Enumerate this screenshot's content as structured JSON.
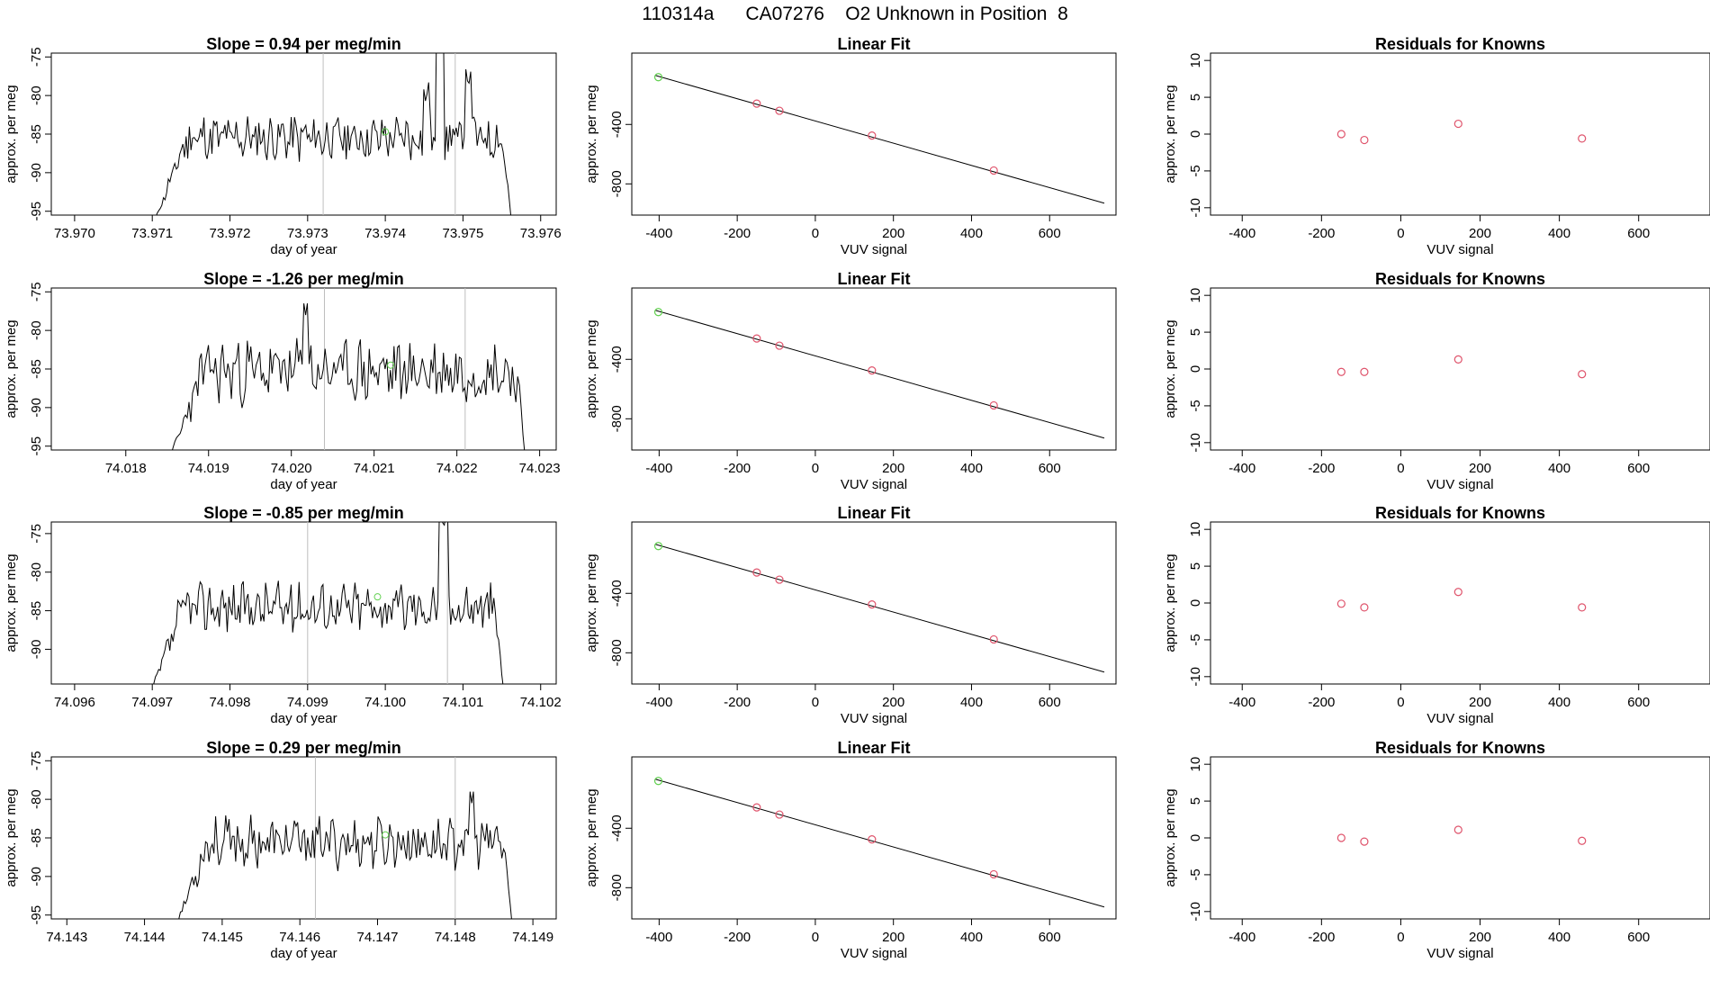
{
  "figure_title": "110314a      CA07276    O2 Unknown in Position  8",
  "labels": {
    "day_of_year": "day of year",
    "approx_per_meg": "approx. per meg",
    "vuv_signal": "VUV signal",
    "linear_fit": "Linear Fit",
    "residuals": "Residuals for Knowns"
  },
  "colors": {
    "trace": "#000000",
    "vline": "#bebebe",
    "known": "#df536b",
    "unknown": "#61d04f",
    "axis": "#000000"
  },
  "chart_data": [
    {
      "row": 0,
      "panel": "time-series",
      "type": "line",
      "title": "Slope =  0.94  per meg/min",
      "xlabel": "day of year",
      "ylabel": "approx. per meg",
      "xlim": [
        73.9697,
        73.9762
      ],
      "ylim": [
        -95.5,
        -74.5
      ],
      "xticks": [
        "73.970",
        "73.971",
        "73.972",
        "73.973",
        "73.974",
        "73.975",
        "73.976"
      ],
      "yticks": [
        "-75",
        "-80",
        "-85",
        "-90",
        "-95"
      ],
      "vlines": [
        73.9732,
        73.9749
      ],
      "unknown_point": [
        73.974,
        -84.7
      ],
      "trace": {
        "start": 73.97104,
        "end": 73.97562,
        "n": 220,
        "mean": -85.5,
        "amp": 1.6,
        "seed": 11,
        "ramp_from": -96,
        "spikes": [
          [
            0.8,
            -72,
            3
          ],
          [
            0.76,
            -81,
            2
          ],
          [
            0.88,
            -79,
            2
          ]
        ],
        "drop_to": -96
      }
    },
    {
      "row": 0,
      "panel": "linear-fit",
      "type": "scatter",
      "title": "Linear Fit",
      "xlabel": "VUV signal",
      "ylabel": "approx. per meg",
      "xlim": [
        -470,
        770
      ],
      "ylim": [
        -1010,
        80
      ],
      "xticks": [
        "-400",
        "-200",
        "0",
        "200",
        "400",
        "600"
      ],
      "yticks": [
        "-400",
        "-800"
      ],
      "fit_line": [
        [
          -410,
          -70
        ],
        [
          740,
          -930
        ]
      ],
      "known_points": [
        [
          -150,
          -260
        ],
        [
          -92,
          -308
        ],
        [
          145,
          -475
        ],
        [
          457,
          -710
        ]
      ],
      "unknown_points": [
        [
          -402,
          -82
        ]
      ]
    },
    {
      "row": 0,
      "panel": "residuals",
      "type": "scatter",
      "title": "Residuals for Knowns",
      "xlabel": "VUV signal",
      "ylabel": "approx. per meg",
      "xlim": [
        -480,
        780
      ],
      "ylim": [
        -11,
        11
      ],
      "xticks": [
        "-400",
        "-200",
        "0",
        "200",
        "400",
        "600"
      ],
      "yticks": [
        "10",
        "5",
        "0",
        "-5",
        "-10"
      ],
      "known_points": [
        [
          -150,
          0.0
        ],
        [
          -92,
          -0.8
        ],
        [
          145,
          1.4
        ],
        [
          457,
          -0.6
        ]
      ]
    },
    {
      "row": 1,
      "panel": "time-series",
      "type": "line",
      "title": "Slope =  -1.26  per meg/min",
      "xlabel": "day of year",
      "ylabel": "approx. per meg",
      "xlim": [
        74.0171,
        74.0232
      ],
      "ylim": [
        -95.5,
        -74.5
      ],
      "xticks": [
        "74.018",
        "74.019",
        "74.020",
        "74.021",
        "74.022",
        "74.023"
      ],
      "yticks": [
        "-75",
        "-80",
        "-85",
        "-90",
        "-95"
      ],
      "vlines": [
        74.0204,
        74.0221
      ],
      "unknown_point": [
        74.0212,
        -84.5
      ],
      "trace": {
        "start": 74.01855,
        "end": 74.02282,
        "n": 200,
        "mean": -85.3,
        "amp": 2.2,
        "seed": 23,
        "ramp_from": -96,
        "spikes": [
          [
            0.38,
            -78,
            2
          ]
        ],
        "drop_to": -96
      }
    },
    {
      "row": 1,
      "panel": "linear-fit",
      "type": "scatter",
      "title": "Linear Fit",
      "xlabel": "VUV signal",
      "ylabel": "approx. per meg",
      "xlim": [
        -470,
        770
      ],
      "ylim": [
        -1010,
        80
      ],
      "xticks": [
        "-400",
        "-200",
        "0",
        "200",
        "400",
        "600"
      ],
      "yticks": [
        "-400",
        "-800"
      ],
      "fit_line": [
        [
          -410,
          -70
        ],
        [
          740,
          -930
        ]
      ],
      "known_points": [
        [
          -150,
          -260
        ],
        [
          -92,
          -308
        ],
        [
          145,
          -475
        ],
        [
          457,
          -710
        ]
      ],
      "unknown_points": [
        [
          -402,
          -82
        ]
      ]
    },
    {
      "row": 1,
      "panel": "residuals",
      "type": "scatter",
      "title": "Residuals for Knowns",
      "xlabel": "VUV signal",
      "ylabel": "approx. per meg",
      "xlim": [
        -480,
        780
      ],
      "ylim": [
        -11,
        11
      ],
      "xticks": [
        "-400",
        "-200",
        "0",
        "200",
        "400",
        "600"
      ],
      "yticks": [
        "10",
        "5",
        "0",
        "-5",
        "-10"
      ],
      "known_points": [
        [
          -150,
          -0.4
        ],
        [
          -92,
          -0.4
        ],
        [
          145,
          1.3
        ],
        [
          457,
          -0.7
        ]
      ]
    },
    {
      "row": 2,
      "panel": "time-series",
      "type": "line",
      "title": "Slope =  -0.85  per meg/min",
      "xlabel": "day of year",
      "ylabel": "approx. per meg",
      "xlim": [
        74.0957,
        74.1022
      ],
      "ylim": [
        -94.5,
        -73.5
      ],
      "xticks": [
        "74.096",
        "74.097",
        "74.098",
        "74.099",
        "74.100",
        "74.101",
        "74.102"
      ],
      "yticks": [
        "-75",
        "-80",
        "-85",
        "-90"
      ],
      "vlines": [
        74.099,
        74.1008
      ],
      "unknown_point": [
        74.0999,
        -83.2
      ],
      "trace": {
        "start": 74.097,
        "end": 74.10152,
        "n": 220,
        "mean": -84.5,
        "amp": 1.7,
        "seed": 37,
        "ramp_from": -95,
        "spikes": [
          [
            0.83,
            -74.5,
            3
          ]
        ],
        "drop_to": -95
      }
    },
    {
      "row": 2,
      "panel": "linear-fit",
      "type": "scatter",
      "title": "Linear Fit",
      "xlabel": "VUV signal",
      "ylabel": "approx. per meg",
      "xlim": [
        -470,
        770
      ],
      "ylim": [
        -1010,
        80
      ],
      "xticks": [
        "-400",
        "-200",
        "0",
        "200",
        "400",
        "600"
      ],
      "yticks": [
        "-400",
        "-800"
      ],
      "fit_line": [
        [
          -410,
          -70
        ],
        [
          740,
          -930
        ]
      ],
      "known_points": [
        [
          -150,
          -260
        ],
        [
          -92,
          -308
        ],
        [
          145,
          -475
        ],
        [
          457,
          -710
        ]
      ],
      "unknown_points": [
        [
          -402,
          -82
        ]
      ]
    },
    {
      "row": 2,
      "panel": "residuals",
      "type": "scatter",
      "title": "Residuals for Knowns",
      "xlabel": "VUV signal",
      "ylabel": "approx. per meg",
      "xlim": [
        -480,
        780
      ],
      "ylim": [
        -11,
        11
      ],
      "xticks": [
        "-400",
        "-200",
        "0",
        "200",
        "400",
        "600"
      ],
      "yticks": [
        "10",
        "5",
        "0",
        "-5",
        "-10"
      ],
      "known_points": [
        [
          -150,
          -0.1
        ],
        [
          -92,
          -0.6
        ],
        [
          145,
          1.5
        ],
        [
          457,
          -0.6
        ]
      ]
    },
    {
      "row": 3,
      "panel": "time-series",
      "type": "line",
      "title": "Slope =  0.29  per meg/min",
      "xlabel": "day of year",
      "ylabel": "approx. per meg",
      "xlim": [
        74.1428,
        74.1493
      ],
      "ylim": [
        -95.5,
        -74.5
      ],
      "xticks": [
        "74.143",
        "74.144",
        "74.145",
        "74.146",
        "74.147",
        "74.148",
        "74.149"
      ],
      "yticks": [
        "-75",
        "-80",
        "-85",
        "-90",
        "-95"
      ],
      "vlines": [
        74.1462,
        74.148
      ],
      "unknown_point": [
        74.1471,
        -84.6
      ],
      "trace": {
        "start": 74.14442,
        "end": 74.14873,
        "n": 200,
        "mean": -85.6,
        "amp": 1.7,
        "seed": 53,
        "ramp_from": -96,
        "spikes": [
          [
            0.88,
            -80.5,
            2
          ]
        ],
        "drop_to": -96
      }
    },
    {
      "row": 3,
      "panel": "linear-fit",
      "type": "scatter",
      "title": "Linear Fit",
      "xlabel": "VUV signal",
      "ylabel": "approx. per meg",
      "xlim": [
        -470,
        770
      ],
      "ylim": [
        -1010,
        80
      ],
      "xticks": [
        "-400",
        "-200",
        "0",
        "200",
        "400",
        "600"
      ],
      "yticks": [
        "-400",
        "-800"
      ],
      "fit_line": [
        [
          -410,
          -70
        ],
        [
          740,
          -930
        ]
      ],
      "known_points": [
        [
          -150,
          -260
        ],
        [
          -92,
          -308
        ],
        [
          145,
          -475
        ],
        [
          457,
          -710
        ]
      ],
      "unknown_points": [
        [
          -402,
          -82
        ]
      ]
    },
    {
      "row": 3,
      "panel": "residuals",
      "type": "scatter",
      "title": "Residuals for Knowns",
      "xlabel": "VUV signal",
      "ylabel": "approx. per meg",
      "xlim": [
        -480,
        780
      ],
      "ylim": [
        -11,
        11
      ],
      "xticks": [
        "-400",
        "-200",
        "0",
        "200",
        "400",
        "600"
      ],
      "yticks": [
        "10",
        "5",
        "0",
        "-5",
        "-10"
      ],
      "known_points": [
        [
          -150,
          0.0
        ],
        [
          -92,
          -0.5
        ],
        [
          145,
          1.1
        ],
        [
          457,
          -0.4
        ]
      ]
    }
  ]
}
